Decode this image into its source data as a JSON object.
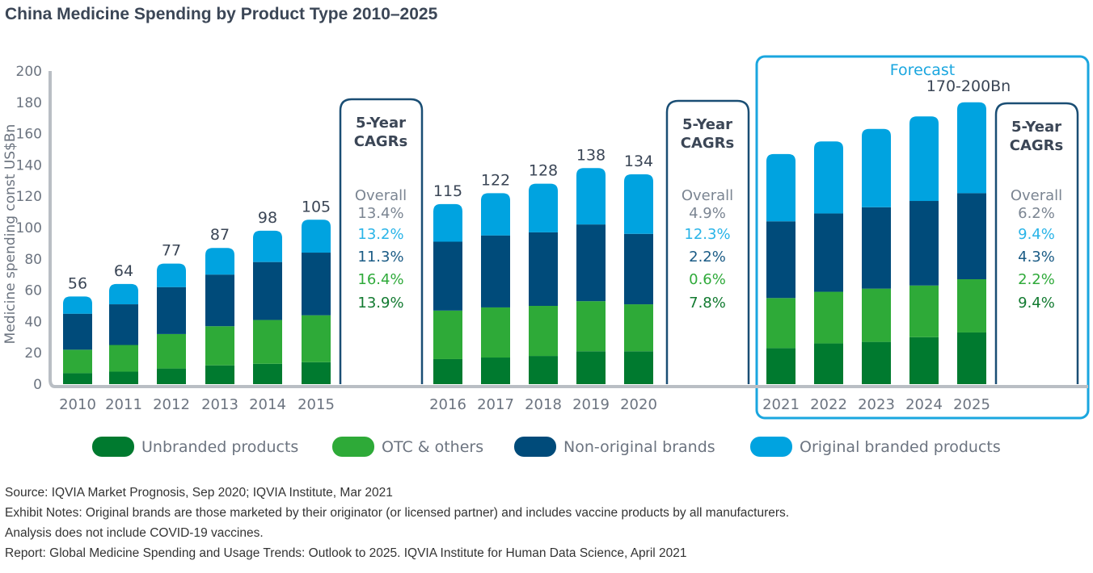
{
  "title": "China Medicine Spending by Product Type 2010–2025",
  "chart_data": {
    "type": "bar",
    "stacked": true,
    "title": "China Medicine Spending by Product Type 2010–2025",
    "ylabel": "Medicine spending const US$Bn",
    "xlabel": "",
    "ylim": [
      0,
      200
    ],
    "yticks": [
      0,
      20,
      40,
      60,
      80,
      100,
      120,
      140,
      160,
      180,
      200
    ],
    "grid": false,
    "legend_position": "bottom",
    "categories": [
      "2010",
      "2011",
      "2012",
      "2013",
      "2014",
      "2015",
      "2016",
      "2017",
      "2018",
      "2019",
      "2020",
      "2021",
      "2022",
      "2023",
      "2024",
      "2025"
    ],
    "series": [
      {
        "name": "Unbranded products",
        "color": "#007a2f",
        "values": [
          7,
          8,
          10,
          12,
          13,
          14,
          16,
          17,
          18,
          21,
          21,
          23,
          26,
          27,
          30,
          33
        ]
      },
      {
        "name": "OTC & others",
        "color": "#2eaa38",
        "values": [
          15,
          17,
          22,
          25,
          28,
          30,
          31,
          32,
          32,
          32,
          30,
          32,
          33,
          34,
          33,
          34
        ]
      },
      {
        "name": "Non-original brands",
        "color": "#004b7a",
        "values": [
          23,
          26,
          30,
          33,
          37,
          40,
          44,
          46,
          47,
          49,
          45,
          49,
          50,
          52,
          54,
          55
        ]
      },
      {
        "name": "Original branded products",
        "color": "#00a3e0",
        "values": [
          11,
          13,
          15,
          17,
          20,
          21,
          24,
          27,
          31,
          36,
          38,
          43,
          46,
          50,
          54,
          58
        ]
      }
    ],
    "total_labels": [
      "56",
      "64",
      "77",
      "87",
      "98",
      "105",
      "115",
      "122",
      "128",
      "138",
      "134",
      "",
      "",
      "",
      "",
      "170-200Bn"
    ],
    "forecast_label": "Forecast",
    "forecast_years": [
      "2021",
      "2022",
      "2023",
      "2024",
      "2025"
    ],
    "cagr_boxes": [
      {
        "heading": [
          "5-Year",
          "CAGRs"
        ],
        "overall_label": "Overall",
        "overall": "13.4%",
        "original": "13.2%",
        "non_original": "11.3%",
        "otc": "16.4%",
        "unbranded": "13.9%"
      },
      {
        "heading": [
          "5-Year",
          "CAGRs"
        ],
        "overall_label": "Overall",
        "overall": "4.9%",
        "original": "12.3%",
        "non_original": "2.2%",
        "otc": "0.6%",
        "unbranded": "7.8%"
      },
      {
        "heading": [
          "5-Year",
          "CAGRs"
        ],
        "overall_label": "Overall",
        "overall": "6.2%",
        "original": "9.4%",
        "non_original": "4.3%",
        "otc": "2.2%",
        "unbranded": "9.4%"
      }
    ],
    "colors": {
      "overall_text": "#7b8592",
      "axis": "#b9bec4",
      "box_border": "#1a4e74",
      "forecast_border": "#1aa6df",
      "text": "#3b4656"
    }
  },
  "legend": [
    {
      "label": "Unbranded products",
      "color": "#007a2f"
    },
    {
      "label": "OTC & others",
      "color": "#2eaa38"
    },
    {
      "label": "Non-original brands",
      "color": "#004b7a"
    },
    {
      "label": "Original branded products",
      "color": "#00a3e0"
    }
  ],
  "notes": [
    "Source: IQVIA Market Prognosis, Sep 2020; IQVIA Institute, Mar 2021",
    "Exhibit Notes: Original brands are those marketed by their originator (or licensed partner) and includes vaccine products by all manufacturers.",
    "Analysis does not include COVID-19 vaccines.",
    "Report: Global Medicine Spending and Usage Trends: Outlook to 2025. IQVIA Institute for Human Data Science, April 2021"
  ]
}
